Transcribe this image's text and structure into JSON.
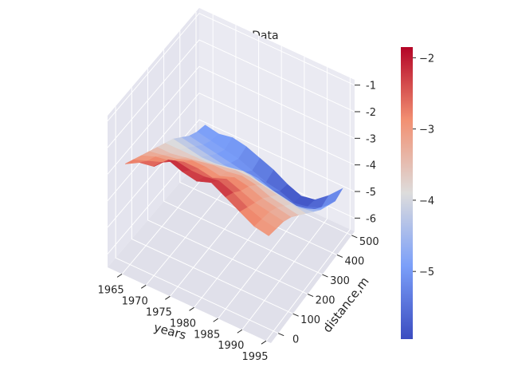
{
  "chart_data": {
    "type": "surface3d",
    "title": "Real Depth  Data",
    "xlabel": "years",
    "ylabel": "distance,m",
    "zlabel": "",
    "colormap": "coolwarm",
    "x_ticks": [
      "1965",
      "1970",
      "1975",
      "1980",
      "1985",
      "1990",
      "1995"
    ],
    "y_ticks": [
      "0",
      "100",
      "200",
      "300",
      "400",
      "500"
    ],
    "z_ticks": [
      "-1",
      "-2",
      "-3",
      "-4",
      "-5",
      "-6"
    ],
    "colorbar_ticks": [
      "−2",
      "−3",
      "−4",
      "−5"
    ],
    "colorbar_range": [
      -5.95,
      -1.85
    ],
    "xlim": [
      1962,
      1996
    ],
    "ylim": [
      -50,
      520
    ],
    "zlim": [
      -6.5,
      -0.8
    ],
    "background": "#eaeaf2",
    "years": [
      1964,
      1967,
      1970,
      1973,
      1976,
      1979,
      1982,
      1985,
      1988,
      1991,
      1994
    ],
    "distances": [
      0,
      50,
      100,
      150,
      200,
      250,
      300,
      350,
      400,
      450,
      500
    ],
    "depth_grid": [
      [
        -2.8,
        -3.0,
        -3.2,
        -3.4,
        -3.6,
        -3.8,
        -4.0,
        -4.3,
        -4.6,
        -4.8,
        -4.9
      ],
      [
        -2.5,
        -2.8,
        -3.0,
        -3.3,
        -3.6,
        -3.8,
        -4.1,
        -4.4,
        -4.7,
        -4.9,
        -5.0
      ],
      [
        -2.4,
        -2.6,
        -2.9,
        -3.2,
        -3.5,
        -3.8,
        -4.2,
        -4.5,
        -4.8,
        -5.0,
        -4.9
      ],
      [
        -1.9,
        -2.3,
        -2.7,
        -3.0,
        -3.4,
        -3.8,
        -4.2,
        -4.6,
        -4.9,
        -5.1,
        -5.0
      ],
      [
        -2.1,
        -2.4,
        -2.7,
        -3.0,
        -3.3,
        -3.7,
        -4.1,
        -4.6,
        -5.0,
        -5.3,
        -5.2
      ],
      [
        -2.2,
        -2.4,
        -2.8,
        -3.1,
        -3.3,
        -3.6,
        -4.0,
        -4.5,
        -5.0,
        -5.5,
        -5.4
      ],
      [
        -2.0,
        -2.3,
        -2.6,
        -2.9,
        -3.2,
        -3.6,
        -4.1,
        -4.7,
        -5.2,
        -5.6,
        -5.7
      ],
      [
        -2.3,
        -2.5,
        -2.8,
        -3.0,
        -3.3,
        -3.7,
        -4.2,
        -4.8,
        -5.3,
        -5.8,
        -5.9
      ],
      [
        -2.6,
        -2.8,
        -3.0,
        -3.2,
        -3.5,
        -3.8,
        -4.3,
        -4.9,
        -5.4,
        -5.7,
        -5.8
      ],
      [
        -2.9,
        -3.0,
        -3.1,
        -3.3,
        -3.6,
        -3.9,
        -4.4,
        -4.8,
        -5.2,
        -5.5,
        -5.4
      ],
      [
        -3.0,
        -3.1,
        -3.2,
        -3.4,
        -3.7,
        -4.0,
        -4.3,
        -4.6,
        -4.8,
        -5.0,
        -4.9
      ]
    ]
  }
}
